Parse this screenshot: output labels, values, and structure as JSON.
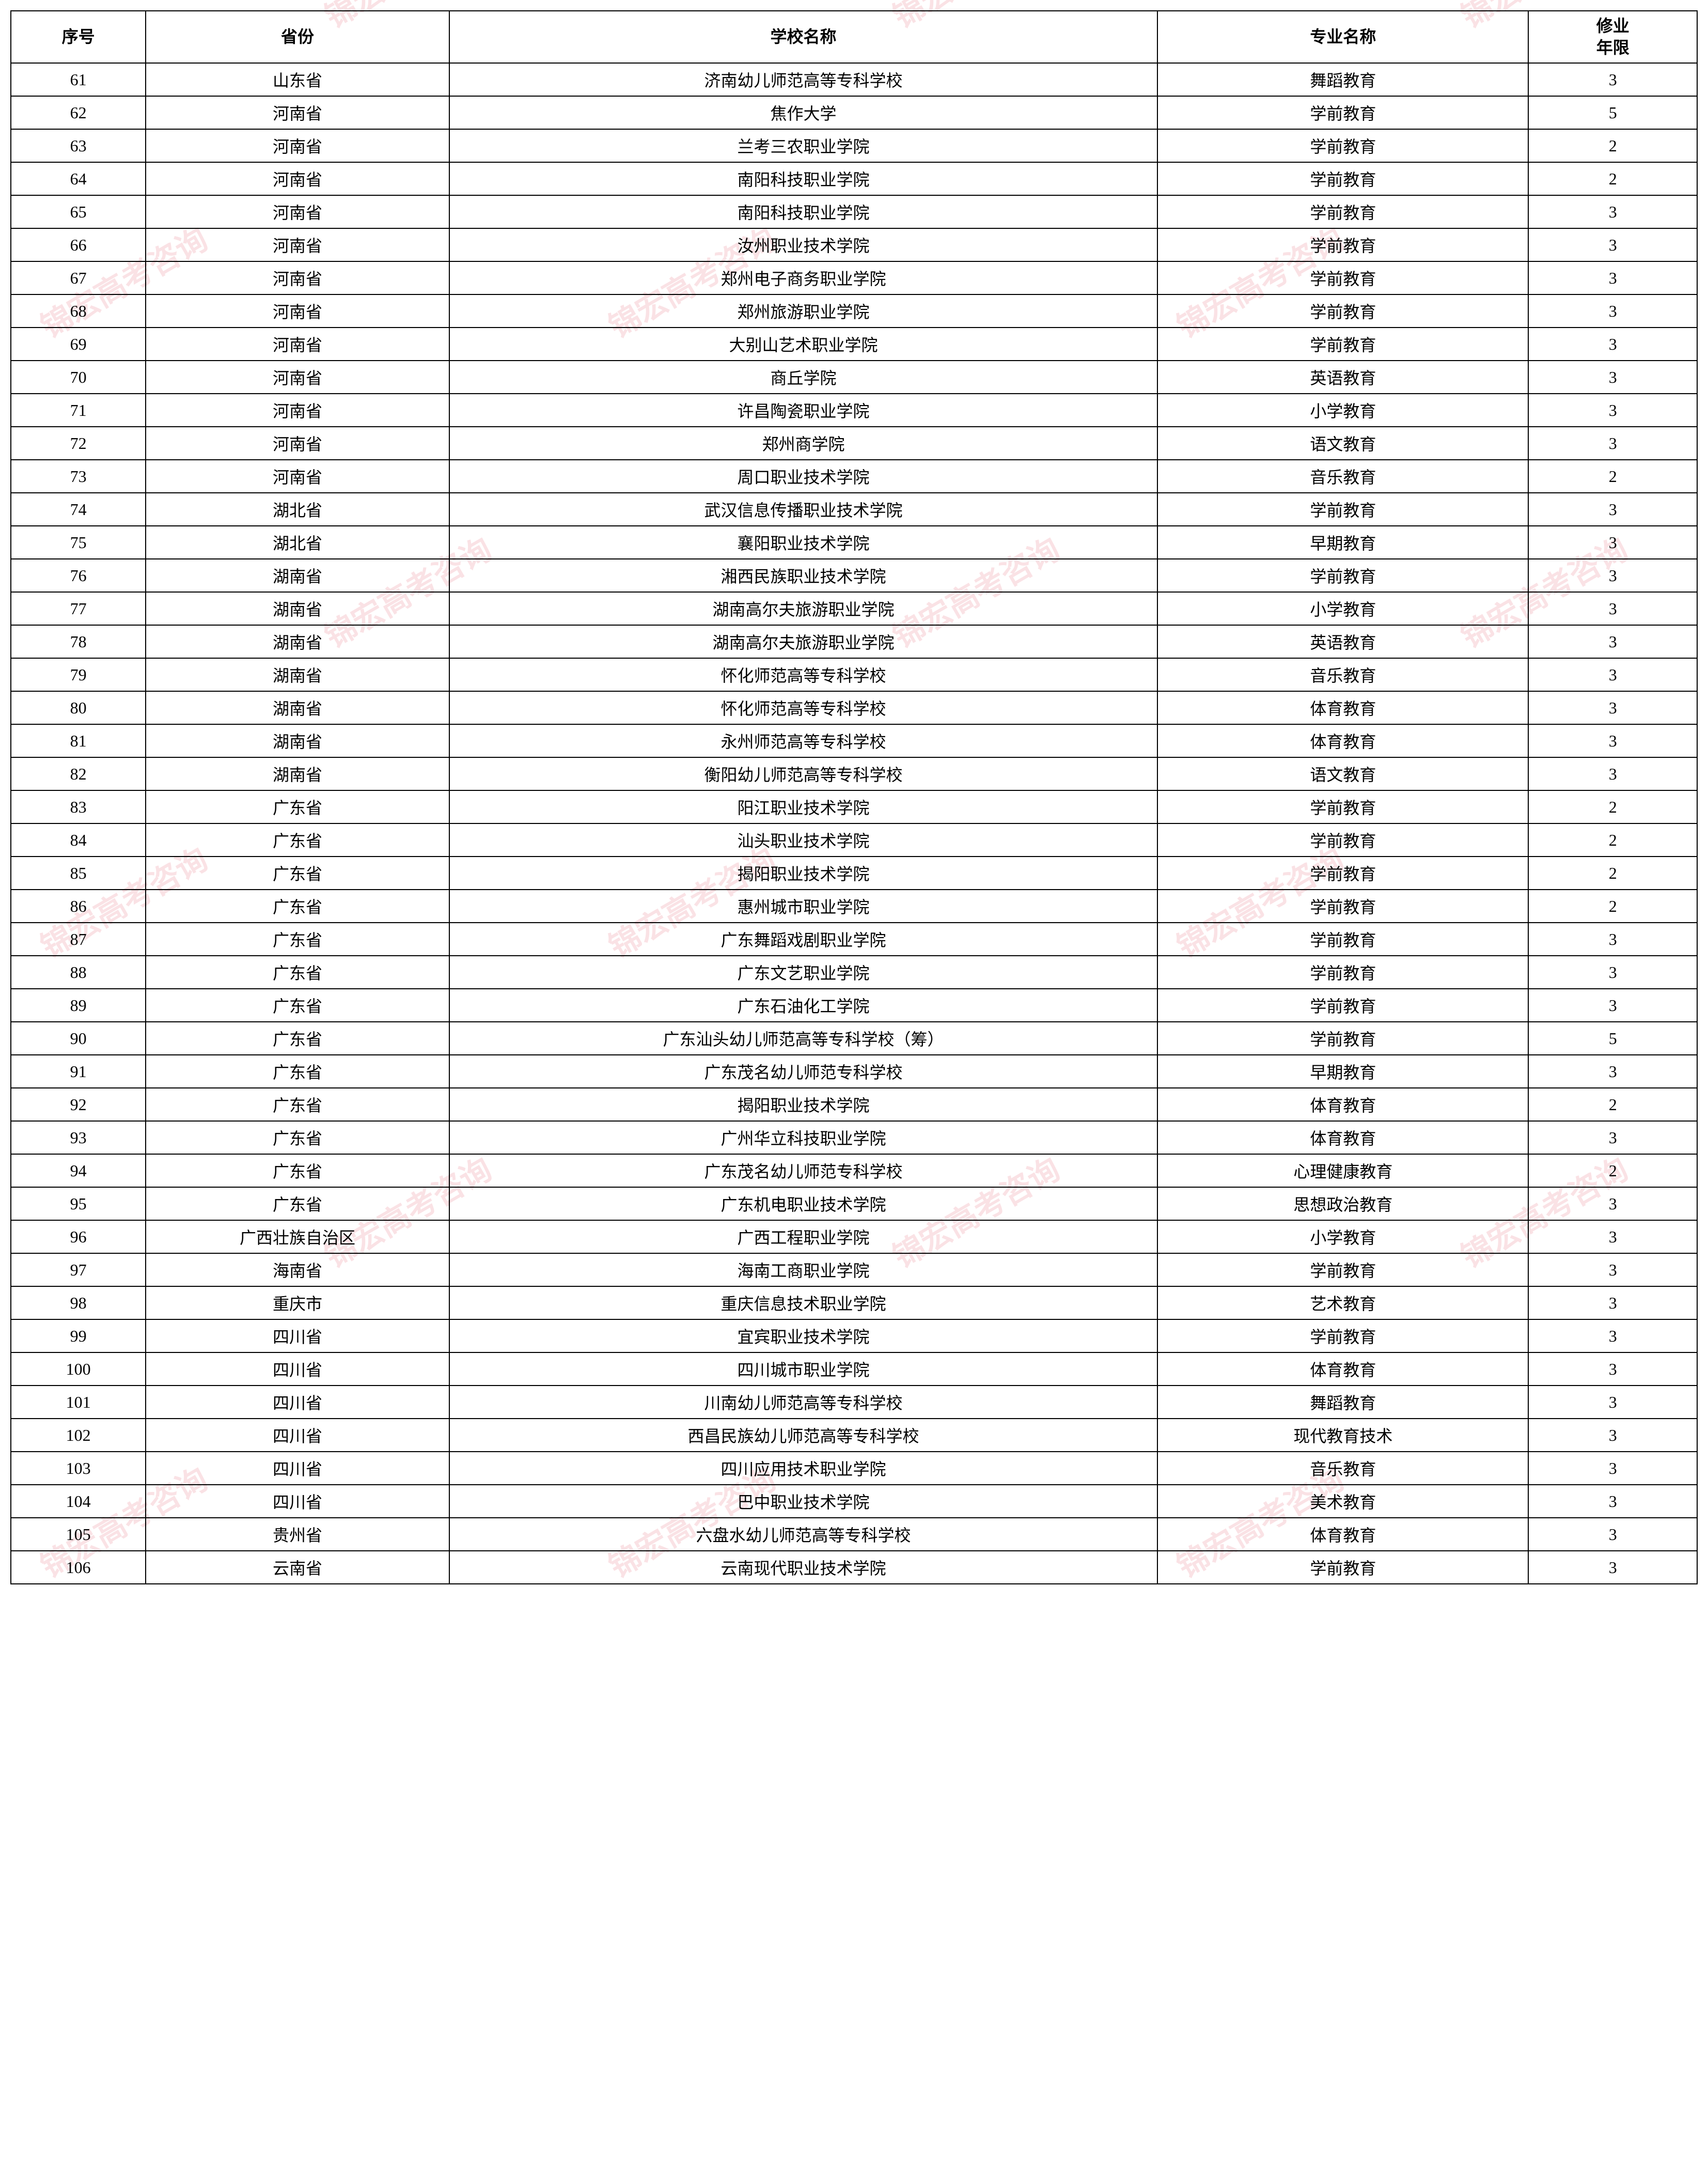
{
  "watermark_text": "锦宏高考咨询",
  "watermark_color": "rgba(220, 60, 80, 0.15)",
  "table": {
    "headers": {
      "seq": "序号",
      "province": "省份",
      "school": "学校名称",
      "major": "专业名称",
      "years": "修业\n年限"
    },
    "columns": [
      "seq",
      "province",
      "school",
      "major",
      "years"
    ],
    "column_widths": [
      "8%",
      "18%",
      "42%",
      "22%",
      "10%"
    ],
    "border_color": "#000000",
    "font_size": 32,
    "background_color": "#ffffff",
    "rows": [
      [
        "61",
        "山东省",
        "济南幼儿师范高等专科学校",
        "舞蹈教育",
        "3"
      ],
      [
        "62",
        "河南省",
        "焦作大学",
        "学前教育",
        "5"
      ],
      [
        "63",
        "河南省",
        "兰考三农职业学院",
        "学前教育",
        "2"
      ],
      [
        "64",
        "河南省",
        "南阳科技职业学院",
        "学前教育",
        "2"
      ],
      [
        "65",
        "河南省",
        "南阳科技职业学院",
        "学前教育",
        "3"
      ],
      [
        "66",
        "河南省",
        "汝州职业技术学院",
        "学前教育",
        "3"
      ],
      [
        "67",
        "河南省",
        "郑州电子商务职业学院",
        "学前教育",
        "3"
      ],
      [
        "68",
        "河南省",
        "郑州旅游职业学院",
        "学前教育",
        "3"
      ],
      [
        "69",
        "河南省",
        "大别山艺术职业学院",
        "学前教育",
        "3"
      ],
      [
        "70",
        "河南省",
        "商丘学院",
        "英语教育",
        "3"
      ],
      [
        "71",
        "河南省",
        "许昌陶瓷职业学院",
        "小学教育",
        "3"
      ],
      [
        "72",
        "河南省",
        "郑州商学院",
        "语文教育",
        "3"
      ],
      [
        "73",
        "河南省",
        "周口职业技术学院",
        "音乐教育",
        "2"
      ],
      [
        "74",
        "湖北省",
        "武汉信息传播职业技术学院",
        "学前教育",
        "3"
      ],
      [
        "75",
        "湖北省",
        "襄阳职业技术学院",
        "早期教育",
        "3"
      ],
      [
        "76",
        "湖南省",
        "湘西民族职业技术学院",
        "学前教育",
        "3"
      ],
      [
        "77",
        "湖南省",
        "湖南高尔夫旅游职业学院",
        "小学教育",
        "3"
      ],
      [
        "78",
        "湖南省",
        "湖南高尔夫旅游职业学院",
        "英语教育",
        "3"
      ],
      [
        "79",
        "湖南省",
        "怀化师范高等专科学校",
        "音乐教育",
        "3"
      ],
      [
        "80",
        "湖南省",
        "怀化师范高等专科学校",
        "体育教育",
        "3"
      ],
      [
        "81",
        "湖南省",
        "永州师范高等专科学校",
        "体育教育",
        "3"
      ],
      [
        "82",
        "湖南省",
        "衡阳幼儿师范高等专科学校",
        "语文教育",
        "3"
      ],
      [
        "83",
        "广东省",
        "阳江职业技术学院",
        "学前教育",
        "2"
      ],
      [
        "84",
        "广东省",
        "汕头职业技术学院",
        "学前教育",
        "2"
      ],
      [
        "85",
        "广东省",
        "揭阳职业技术学院",
        "学前教育",
        "2"
      ],
      [
        "86",
        "广东省",
        "惠州城市职业学院",
        "学前教育",
        "2"
      ],
      [
        "87",
        "广东省",
        "广东舞蹈戏剧职业学院",
        "学前教育",
        "3"
      ],
      [
        "88",
        "广东省",
        "广东文艺职业学院",
        "学前教育",
        "3"
      ],
      [
        "89",
        "广东省",
        "广东石油化工学院",
        "学前教育",
        "3"
      ],
      [
        "90",
        "广东省",
        "广东汕头幼儿师范高等专科学校（筹）",
        "学前教育",
        "5"
      ],
      [
        "91",
        "广东省",
        "广东茂名幼儿师范专科学校",
        "早期教育",
        "3"
      ],
      [
        "92",
        "广东省",
        "揭阳职业技术学院",
        "体育教育",
        "2"
      ],
      [
        "93",
        "广东省",
        "广州华立科技职业学院",
        "体育教育",
        "3"
      ],
      [
        "94",
        "广东省",
        "广东茂名幼儿师范专科学校",
        "心理健康教育",
        "2"
      ],
      [
        "95",
        "广东省",
        "广东机电职业技术学院",
        "思想政治教育",
        "3"
      ],
      [
        "96",
        "广西壮族自治区",
        "广西工程职业学院",
        "小学教育",
        "3"
      ],
      [
        "97",
        "海南省",
        "海南工商职业学院",
        "学前教育",
        "3"
      ],
      [
        "98",
        "重庆市",
        "重庆信息技术职业学院",
        "艺术教育",
        "3"
      ],
      [
        "99",
        "四川省",
        "宜宾职业技术学院",
        "学前教育",
        "3"
      ],
      [
        "100",
        "四川省",
        "四川城市职业学院",
        "体育教育",
        "3"
      ],
      [
        "101",
        "四川省",
        "川南幼儿师范高等专科学校",
        "舞蹈教育",
        "3"
      ],
      [
        "102",
        "四川省",
        "西昌民族幼儿师范高等专科学校",
        "现代教育技术",
        "3"
      ],
      [
        "103",
        "四川省",
        "四川应用技术职业学院",
        "音乐教育",
        "3"
      ],
      [
        "104",
        "四川省",
        "巴中职业技术学院",
        "美术教育",
        "3"
      ],
      [
        "105",
        "贵州省",
        "六盘水幼儿师范高等专科学校",
        "体育教育",
        "3"
      ],
      [
        "106",
        "云南省",
        "云南现代职业技术学院",
        "学前教育",
        "3"
      ]
    ]
  }
}
